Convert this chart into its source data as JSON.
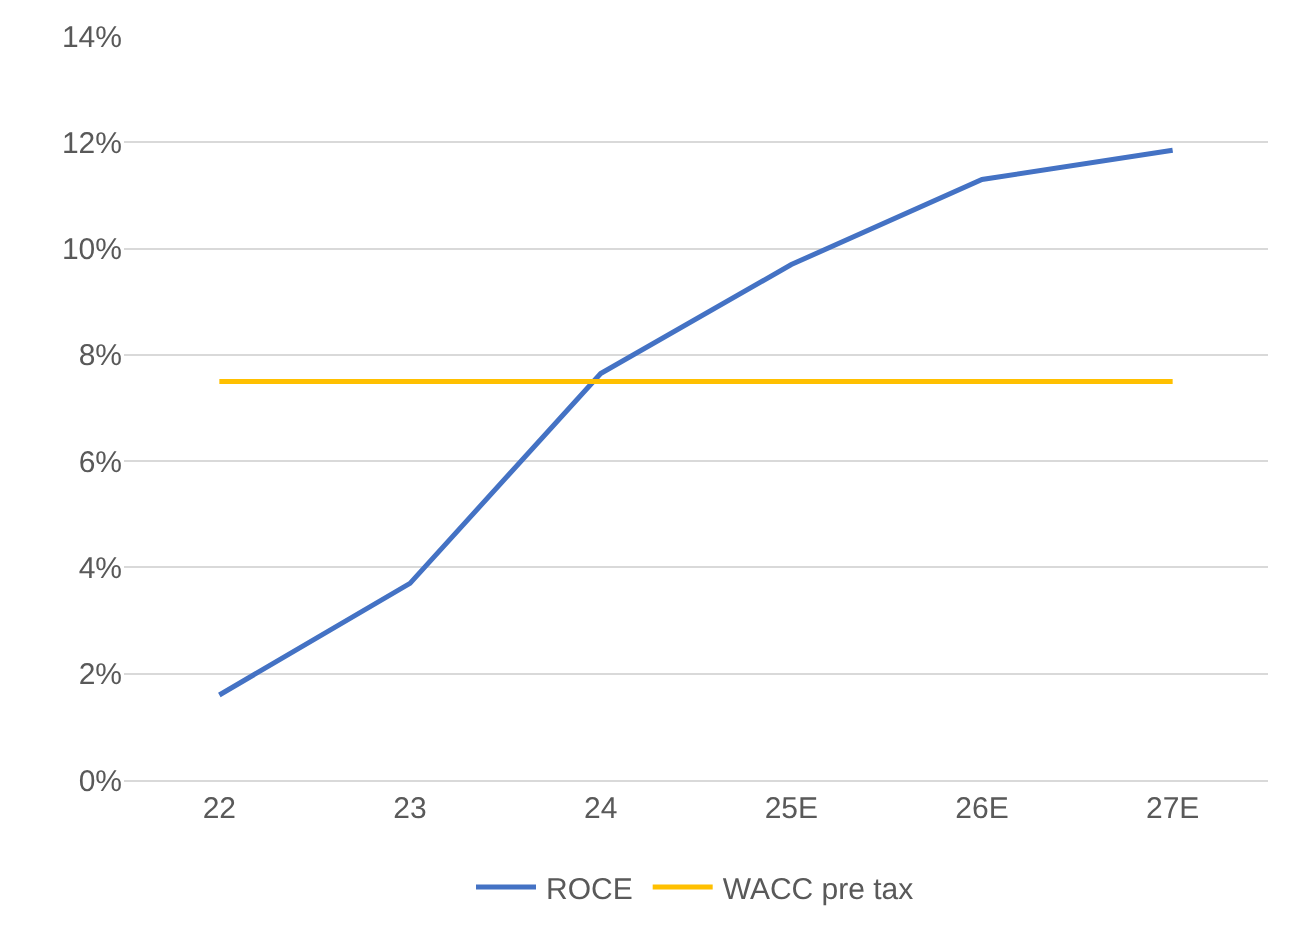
{
  "chart_data": {
    "type": "line",
    "categories": [
      "22",
      "23",
      "24",
      "25E",
      "26E",
      "27E"
    ],
    "series": [
      {
        "name": "ROCE",
        "color": "#4472c4",
        "values": [
          1.6,
          3.7,
          7.65,
          9.7,
          11.3,
          11.85
        ]
      },
      {
        "name": "WACC pre tax",
        "color": "#ffc000",
        "values": [
          7.5,
          7.5,
          7.5,
          7.5,
          7.5,
          7.5
        ]
      }
    ],
    "ylim": [
      0,
      14
    ],
    "yticks": [
      {
        "value": 0,
        "label": "0%"
      },
      {
        "value": 2,
        "label": "2%"
      },
      {
        "value": 4,
        "label": "4%"
      },
      {
        "value": 6,
        "label": "6%"
      },
      {
        "value": 8,
        "label": "8%"
      },
      {
        "value": 10,
        "label": "10%"
      },
      {
        "value": 12,
        "label": "12%"
      },
      {
        "value": 14,
        "label": "14%"
      }
    ],
    "grid": "y",
    "legend": "bottom",
    "marker": "none",
    "line_style": "solid"
  }
}
